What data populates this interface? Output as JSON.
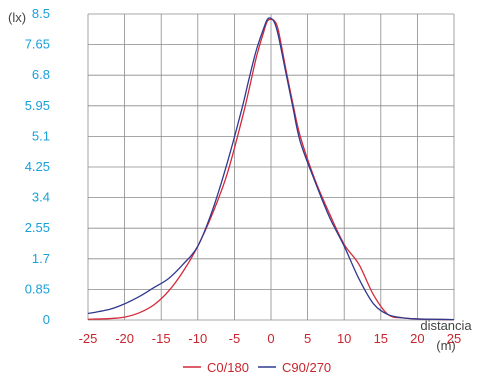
{
  "chart_data": {
    "type": "line",
    "y_unit": "(lx)",
    "x_label": "distancia",
    "x_unit": "(m)",
    "xlim": [
      -25,
      25
    ],
    "ylim": [
      0,
      8.5
    ],
    "x_ticks": [
      -25,
      -20,
      -15,
      -10,
      -5,
      0,
      5,
      10,
      15,
      20,
      25
    ],
    "y_ticks": [
      "0",
      "0.85",
      "1.7",
      "2.55",
      "3.4",
      "4.25",
      "5.1",
      "5.95",
      "6.8",
      "7.65",
      "8.5"
    ],
    "grid": true,
    "legend_position": "bottom-center",
    "colors": {
      "C0/180": "#d42a3a",
      "C90/270": "#2f3a8f",
      "y_ticks": "#1aa0d8",
      "x_ticks": "#c8262e",
      "grid": "#8a8a8a"
    },
    "series": [
      {
        "name": "C0/180",
        "x": [
          -25,
          -22,
          -20,
          -18,
          -16,
          -14,
          -12,
          -10,
          -8,
          -6,
          -4,
          -3,
          -2,
          -1,
          -0.5,
          0,
          0.5,
          1,
          2,
          3,
          4,
          6,
          8,
          10,
          12,
          14,
          16,
          18,
          20,
          22,
          25
        ],
        "y": [
          0.02,
          0.04,
          0.08,
          0.2,
          0.42,
          0.8,
          1.35,
          2.05,
          2.95,
          4.05,
          5.55,
          6.4,
          7.3,
          8.0,
          8.3,
          8.35,
          8.3,
          8.05,
          7.0,
          6.0,
          5.1,
          3.9,
          2.95,
          2.1,
          1.55,
          0.7,
          0.15,
          0.06,
          0.03,
          0.02,
          0.01
        ]
      },
      {
        "name": "C90/270",
        "x": [
          -25,
          -22,
          -20,
          -18,
          -16,
          -14,
          -12,
          -10,
          -8,
          -6,
          -4,
          -3,
          -2,
          -1,
          -0.5,
          0,
          0.5,
          1,
          2,
          3,
          4,
          6,
          8,
          10,
          12,
          14,
          16,
          18,
          20,
          22,
          25
        ],
        "y": [
          0.18,
          0.3,
          0.45,
          0.65,
          0.9,
          1.15,
          1.55,
          2.05,
          3.05,
          4.35,
          5.85,
          6.7,
          7.5,
          8.1,
          8.35,
          8.38,
          8.25,
          7.9,
          6.9,
          5.9,
          4.95,
          3.85,
          2.85,
          2.05,
          1.15,
          0.45,
          0.15,
          0.06,
          0.03,
          0.02,
          0.01
        ]
      }
    ]
  }
}
